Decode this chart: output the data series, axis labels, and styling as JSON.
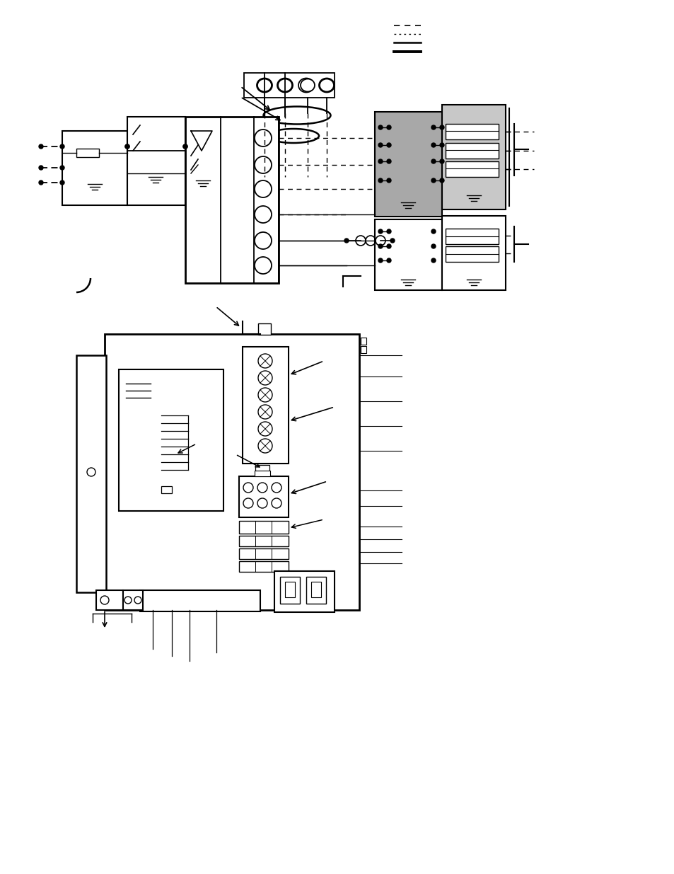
{
  "bg_color": "#ffffff",
  "line_color": "#000000",
  "gray_dark": "#a8a8a8",
  "gray_light": "#c8c8c8",
  "figure_width": 9.54,
  "figure_height": 12.35
}
